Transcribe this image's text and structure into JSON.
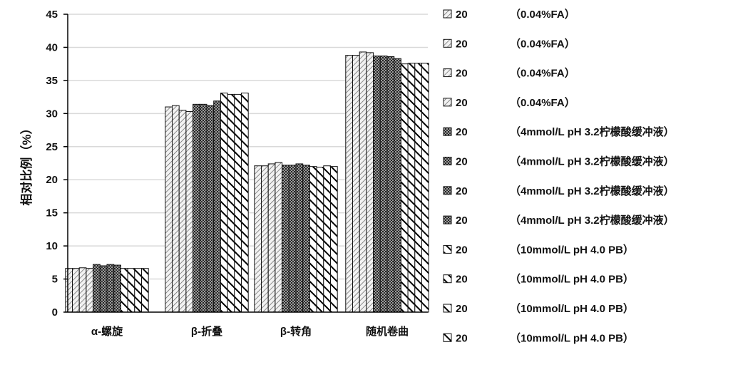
{
  "chart_data": {
    "type": "bar",
    "title": "",
    "xlabel": "",
    "ylabel": "相对比例（%）",
    "ylim": [
      0,
      45
    ],
    "yticks": [
      0,
      5,
      10,
      15,
      20,
      25,
      30,
      35,
      40,
      45
    ],
    "grid": true,
    "legend_position": "right",
    "categories": [
      "α-螺旋",
      "β-折叠",
      "β-转角",
      "随机卷曲"
    ],
    "series": [
      {
        "prefix": "20",
        "name": "（0.04%FA）",
        "pattern": "diag-light",
        "values": [
          6.6,
          31.0,
          22.1,
          38.8
        ]
      },
      {
        "prefix": "20",
        "name": "（0.04%FA）",
        "pattern": "diag-light",
        "values": [
          6.6,
          31.2,
          22.1,
          38.8
        ]
      },
      {
        "prefix": "20",
        "name": "（0.04%FA）",
        "pattern": "diag-light",
        "values": [
          6.7,
          30.5,
          22.4,
          39.3
        ]
      },
      {
        "prefix": "20",
        "name": "（0.04%FA）",
        "pattern": "diag-light",
        "values": [
          6.6,
          30.3,
          22.6,
          39.2
        ]
      },
      {
        "prefix": "20",
        "name": "（4mmol/L pH 3.2柠檬酸缓冲液）",
        "pattern": "checker",
        "values": [
          7.2,
          31.4,
          22.2,
          38.7
        ]
      },
      {
        "prefix": "20",
        "name": "（4mmol/L pH 3.2柠檬酸缓冲液）",
        "pattern": "checker",
        "values": [
          7.0,
          31.4,
          22.2,
          38.7
        ]
      },
      {
        "prefix": "20",
        "name": "（4mmol/L pH 3.2柠檬酸缓冲液）",
        "pattern": "checker",
        "values": [
          7.2,
          31.2,
          22.4,
          38.6
        ]
      },
      {
        "prefix": "20",
        "name": "（4mmol/L pH 3.2柠檬酸缓冲液）",
        "pattern": "checker",
        "values": [
          7.1,
          31.9,
          22.2,
          38.3
        ]
      },
      {
        "prefix": "20",
        "name": "（10mmol/L pH 4.0 PB）",
        "pattern": "diag-bold",
        "values": [
          6.6,
          33.1,
          22.0,
          37.5
        ]
      },
      {
        "prefix": "20",
        "name": "（10mmol/L pH 4.0 PB）",
        "pattern": "diag-bold",
        "values": [
          6.6,
          32.9,
          21.9,
          37.6
        ]
      },
      {
        "prefix": "20",
        "name": "（10mmol/L pH 4.0 PB）",
        "pattern": "diag-bold",
        "values": [
          6.6,
          32.9,
          22.1,
          37.6
        ]
      },
      {
        "prefix": "20",
        "name": "（10mmol/L pH 4.0 PB）",
        "pattern": "diag-bold",
        "values": [
          6.6,
          33.1,
          22.0,
          37.6
        ]
      }
    ]
  }
}
